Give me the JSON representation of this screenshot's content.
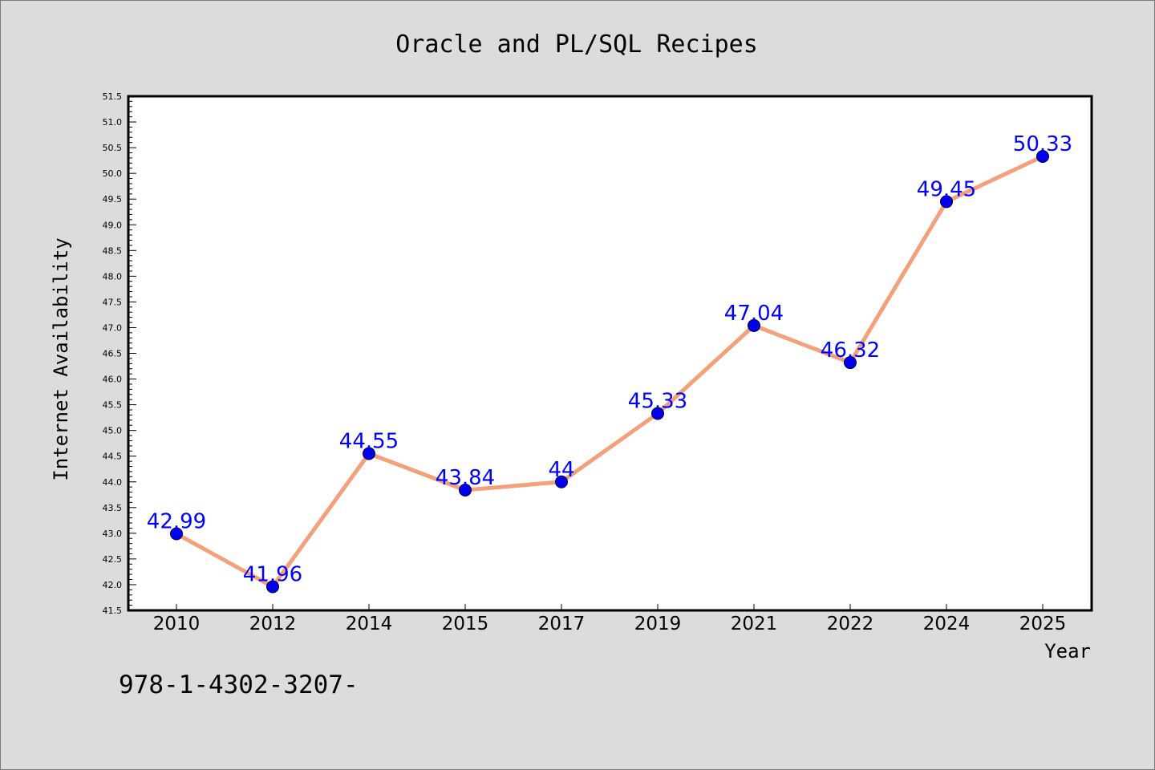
{
  "chart_data": {
    "type": "line",
    "title": "Oracle and PL/SQL Recipes",
    "xlabel": "Year",
    "ylabel": "Internet Availability",
    "categories": [
      "2010",
      "2012",
      "2014",
      "2015",
      "2017",
      "2019",
      "2021",
      "2022",
      "2024",
      "2025"
    ],
    "series": [
      {
        "values": [
          42.99,
          41.96,
          44.55,
          43.84,
          44,
          45.33,
          47.04,
          46.32,
          49.45,
          50.33
        ],
        "data_labels": [
          "42.99",
          "41.96",
          "44.55",
          "43.84",
          "44",
          "45.33",
          "47.04",
          "46.32",
          "49.45",
          "50.33"
        ]
      }
    ],
    "ylim": [
      41.5,
      51.5
    ],
    "yticks": [
      "41.5",
      "42.0",
      "42.5",
      "43.0",
      "43.5",
      "44.0",
      "44.5",
      "45.0",
      "45.5",
      "46.0",
      "46.5",
      "47.0",
      "47.5",
      "48.0",
      "48.5",
      "49.0",
      "49.5",
      "50.0",
      "50.5",
      "51.0",
      "51.5"
    ],
    "grid": false,
    "legend": "none",
    "colors": {
      "line": "#f4a07a",
      "marker": "#0000ee",
      "label": "#0000ff",
      "background": "#dcdcdc",
      "plot_background": "#ffffff"
    }
  },
  "footer": {
    "isbn": "978-1-4302-3207-"
  }
}
